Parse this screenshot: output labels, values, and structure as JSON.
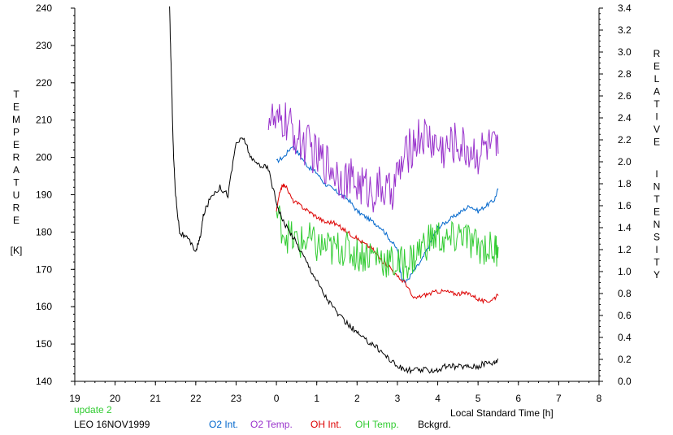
{
  "chart_data": {
    "type": "line",
    "xlabel": "Local Standard Time [h]",
    "x_ticks": [
      "19",
      "20",
      "21",
      "22",
      "23",
      "0",
      "1",
      "2",
      "3",
      "4",
      "5",
      "6",
      "7",
      "8"
    ],
    "left_axis": {
      "label_letters": [
        "T",
        "E",
        "M",
        "P",
        "E",
        "R",
        "A",
        "T",
        "U",
        "R",
        "E"
      ],
      "unit": "[K]",
      "ylim": [
        140,
        240
      ],
      "ticks": [
        "140",
        "150",
        "160",
        "170",
        "180",
        "190",
        "200",
        "210",
        "220",
        "230",
        "240"
      ]
    },
    "right_axis": {
      "label_letters_1": [
        "R",
        "E",
        "L",
        "A",
        "T",
        "I",
        "V",
        "E"
      ],
      "label_letters_2": [
        "I",
        "N",
        "T",
        "E",
        "N",
        "S",
        "I",
        "T",
        "Y"
      ],
      "ylim": [
        0.0,
        3.4
      ],
      "ticks": [
        "0.0",
        "0.2",
        "0.4",
        "0.6",
        "0.8",
        "1.0",
        "1.2",
        "1.4",
        "1.6",
        "1.8",
        "2.0",
        "2.2",
        "2.4",
        "2.6",
        "2.8",
        "3.0",
        "3.2",
        "3.4"
      ]
    },
    "x_range_hours_from_19": [
      0,
      13
    ],
    "grid": false,
    "annotations": {
      "update": "update 2",
      "station": "LEO 16NOV1999"
    },
    "series": [
      {
        "name": "O2 Int.",
        "axis": "right",
        "color": "#0066cc",
        "noise": 0.02,
        "x": [
          24.0,
          24.2,
          24.4,
          24.6,
          24.8,
          25.0,
          25.2,
          25.4,
          25.6,
          25.8,
          26.0,
          26.2,
          26.4,
          26.6,
          26.8,
          27.0,
          27.1,
          27.2,
          27.4,
          27.6,
          27.8,
          28.0,
          28.2,
          28.4,
          28.6,
          28.8,
          29.0,
          29.2,
          29.4,
          29.5
        ],
        "y": [
          2.0,
          2.05,
          2.15,
          2.05,
          1.95,
          1.9,
          1.8,
          1.75,
          1.7,
          1.65,
          1.55,
          1.5,
          1.45,
          1.4,
          1.3,
          1.2,
          0.95,
          0.9,
          1.0,
          1.1,
          1.25,
          1.4,
          1.45,
          1.5,
          1.55,
          1.6,
          1.55,
          1.6,
          1.65,
          1.75
        ]
      },
      {
        "name": "O2 Temp.",
        "axis": "left",
        "color": "#9933cc",
        "noise": 6,
        "x": [
          23.8,
          24.0,
          24.2,
          24.4,
          24.6,
          24.8,
          25.0,
          25.2,
          25.4,
          25.6,
          25.8,
          26.0,
          26.2,
          26.4,
          26.6,
          26.8,
          27.0,
          27.2,
          27.4,
          27.6,
          27.8,
          28.0,
          28.2,
          28.4,
          28.6,
          28.8,
          29.0,
          29.2,
          29.4,
          29.5
        ],
        "y": [
          212,
          208,
          210,
          207,
          204,
          203,
          200,
          199,
          197,
          195,
          194,
          193,
          192,
          191,
          192,
          190,
          195,
          200,
          204,
          206,
          205,
          203,
          202,
          204,
          203,
          202,
          201,
          203,
          202,
          201
        ]
      },
      {
        "name": "OH Int.",
        "axis": "right",
        "color": "#dd0000",
        "noise": 0.02,
        "x": [
          24.0,
          24.1,
          24.2,
          24.4,
          24.6,
          24.8,
          25.0,
          25.2,
          25.4,
          25.6,
          25.8,
          26.0,
          26.2,
          26.4,
          26.6,
          26.8,
          27.0,
          27.2,
          27.4,
          27.6,
          27.8,
          28.0,
          28.2,
          28.4,
          28.6,
          28.8,
          29.0,
          29.2,
          29.4,
          29.5
        ],
        "y": [
          1.55,
          1.75,
          1.8,
          1.65,
          1.6,
          1.55,
          1.5,
          1.45,
          1.45,
          1.4,
          1.35,
          1.3,
          1.25,
          1.2,
          1.1,
          1.05,
          0.95,
          0.9,
          0.75,
          0.78,
          0.8,
          0.82,
          0.82,
          0.8,
          0.8,
          0.8,
          0.75,
          0.72,
          0.76,
          0.78
        ]
      },
      {
        "name": "OH Temp.",
        "axis": "left",
        "color": "#33cc33",
        "noise": 5,
        "x": [
          24.0,
          24.2,
          24.4,
          24.6,
          24.8,
          25.0,
          25.2,
          25.4,
          25.6,
          25.8,
          26.0,
          26.2,
          26.4,
          26.6,
          26.8,
          27.0,
          27.2,
          27.4,
          27.6,
          27.8,
          28.0,
          28.2,
          28.4,
          28.6,
          28.8,
          29.0,
          29.2,
          29.4,
          29.5
        ],
        "y": [
          185,
          180,
          178,
          177,
          178,
          176,
          176,
          175,
          176,
          175,
          174,
          174,
          174,
          173,
          172,
          171,
          172,
          173,
          176,
          178,
          179,
          177,
          178,
          180,
          177,
          176,
          176,
          175,
          176
        ]
      },
      {
        "name": "Bckgrd.",
        "axis": "left",
        "color": "#000000",
        "noise": 0.8,
        "x": [
          21.35,
          21.4,
          21.45,
          21.5,
          21.6,
          21.8,
          22.0,
          22.1,
          22.2,
          22.4,
          22.6,
          22.8,
          23.0,
          23.2,
          23.4,
          23.6,
          23.8,
          24.0,
          24.2,
          24.4,
          24.6,
          24.8,
          25.0,
          25.2,
          25.4,
          25.6,
          25.8,
          26.0,
          26.2,
          26.4,
          26.6,
          26.8,
          27.0,
          27.2,
          27.4,
          27.6,
          27.8,
          28.0,
          28.2,
          28.4,
          28.6,
          28.8,
          29.0,
          29.2,
          29.4,
          29.5
        ],
        "y": [
          240,
          220,
          200,
          190,
          180,
          178,
          175,
          178,
          185,
          190,
          192,
          190,
          204,
          205,
          199,
          198,
          197,
          188,
          182,
          179,
          175,
          171,
          167,
          163,
          160,
          157,
          155,
          153,
          151,
          150,
          148,
          146,
          144,
          143,
          143,
          143,
          143,
          143,
          144,
          144,
          144,
          144,
          144,
          145,
          145,
          146
        ]
      }
    ]
  }
}
